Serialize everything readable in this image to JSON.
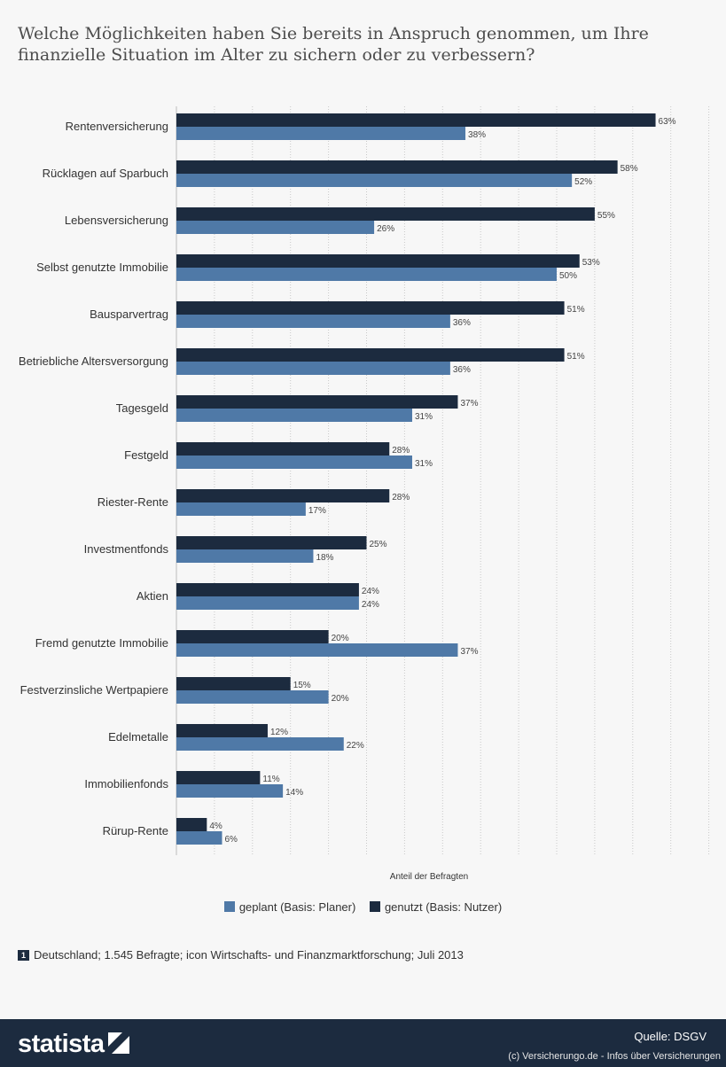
{
  "chart_data": {
    "type": "bar",
    "orientation": "horizontal",
    "title": "Welche Möglichkeiten haben Sie bereits in Anspruch genommen, um Ihre finanzielle Situation im Alter zu sichern oder zu verbessern?",
    "xlabel": "Anteil der Befragten",
    "ylabel": "",
    "xlim": [
      0,
      70
    ],
    "grid": true,
    "legend_position": "bottom",
    "value_suffix": "%",
    "categories": [
      "Rentenversicherung",
      "Rücklagen auf Sparbuch",
      "Lebensversicherung",
      "Selbst genutzte Immobilie",
      "Bausparvertrag",
      "Betriebliche Altersversorgung",
      "Tagesgeld",
      "Festgeld",
      "Riester-Rente",
      "Investmentfonds",
      "Aktien",
      "Fremd genutzte Immobilie",
      "Festverzinsliche Wertpapiere",
      "Edelmetalle",
      "Immobilienfonds",
      "Rürup-Rente"
    ],
    "series": [
      {
        "name": "genutzt (Basis: Nutzer)",
        "color": "#1c2b3f",
        "values": [
          63,
          58,
          55,
          53,
          51,
          51,
          37,
          28,
          28,
          25,
          24,
          20,
          15,
          12,
          11,
          4
        ]
      },
      {
        "name": "geplant (Basis: Planer)",
        "color": "#4f79a7",
        "values": [
          38,
          52,
          26,
          50,
          36,
          36,
          31,
          31,
          17,
          18,
          24,
          37,
          20,
          22,
          14,
          6
        ]
      }
    ]
  },
  "legend": [
    {
      "label": "geplant (Basis: Planer)",
      "color": "#4f79a7"
    },
    {
      "label": "genutzt (Basis: Nutzer)",
      "color": "#1c2b3f"
    }
  ],
  "note": {
    "badge": "1",
    "text": "Deutschland; 1.545 Befragte; icon Wirtschafts- und Finanzmarktforschung; Juli 2013"
  },
  "footer": {
    "logo": "statista",
    "source": "Quelle: DSGV",
    "credit": "(c) Versicherungo.de - Infos über Versicherungen"
  }
}
